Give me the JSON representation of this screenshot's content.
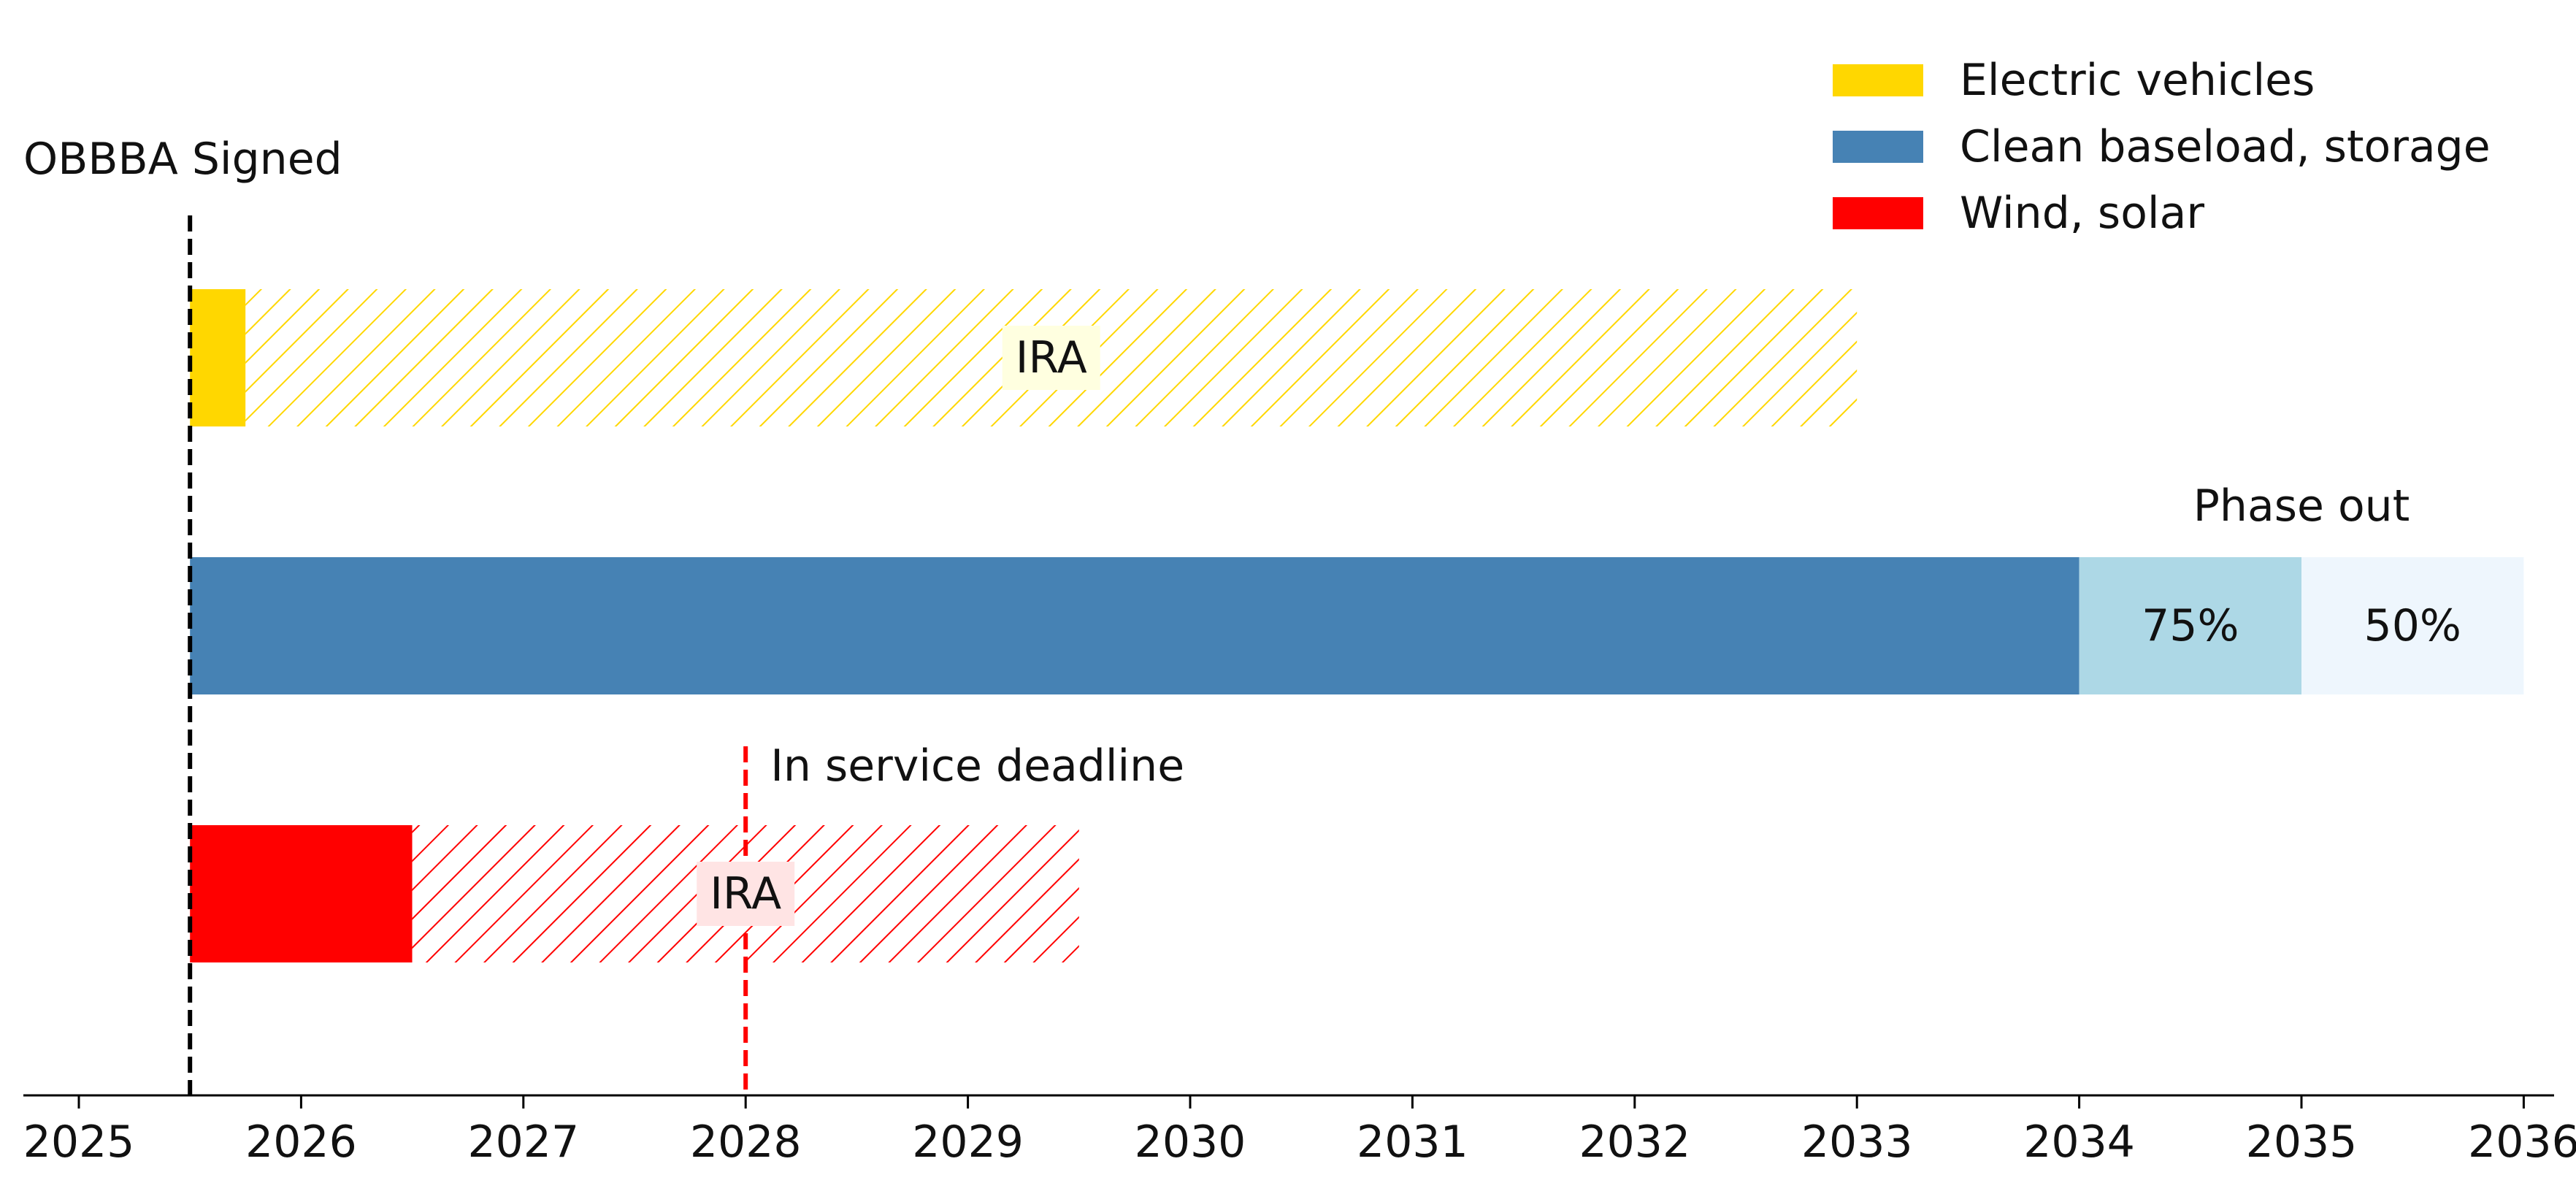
{
  "chart_data": {
    "type": "bar",
    "title": "",
    "xlabel": "",
    "ylabel": "",
    "xlim": [
      2024.75,
      2036.4
    ],
    "xticks": [
      2025,
      2026,
      2027,
      2028,
      2029,
      2030,
      2031,
      2032,
      2033,
      2034,
      2035,
      2036
    ],
    "grid": false,
    "legend": {
      "placement": "top-right",
      "entries": [
        {
          "label": "Electric vehicles",
          "color": "#FFD700"
        },
        {
          "label": "Clean baseload, storage",
          "color": "#4682B4"
        },
        {
          "label": "Wind, solar",
          "color": "#FF0000"
        }
      ]
    },
    "rows": [
      {
        "category": "Electric vehicles",
        "color": "#FFD700",
        "segments": [
          {
            "start": 2025.5,
            "end": 2025.75,
            "style": "solid",
            "label": ""
          },
          {
            "start": 2025.75,
            "end": 2033.0,
            "style": "hatched",
            "label": "IRA"
          }
        ]
      },
      {
        "category": "Clean baseload, storage",
        "color": "#4682B4",
        "segments": [
          {
            "start": 2025.5,
            "end": 2034.0,
            "style": "solid",
            "label": ""
          },
          {
            "start": 2034.0,
            "end": 2035.0,
            "style": "phase",
            "color": "#ADD8E6",
            "label": "75%"
          },
          {
            "start": 2035.0,
            "end": 2036.0,
            "style": "phase",
            "color": "#EEF6FD",
            "label": "50%"
          }
        ],
        "annotation": "Phase out"
      },
      {
        "category": "Wind, solar",
        "color": "#FF0000",
        "segments": [
          {
            "start": 2025.5,
            "end": 2026.5,
            "style": "solid",
            "label": ""
          },
          {
            "start": 2026.5,
            "end": 2029.5,
            "style": "hatched",
            "label": "IRA"
          }
        ]
      }
    ],
    "vlines": [
      {
        "x": 2025.5,
        "label": "OBBBA Signed",
        "color": "#000000"
      },
      {
        "x": 2028.0,
        "label": "In service deadline",
        "color": "#FF0000"
      }
    ]
  }
}
